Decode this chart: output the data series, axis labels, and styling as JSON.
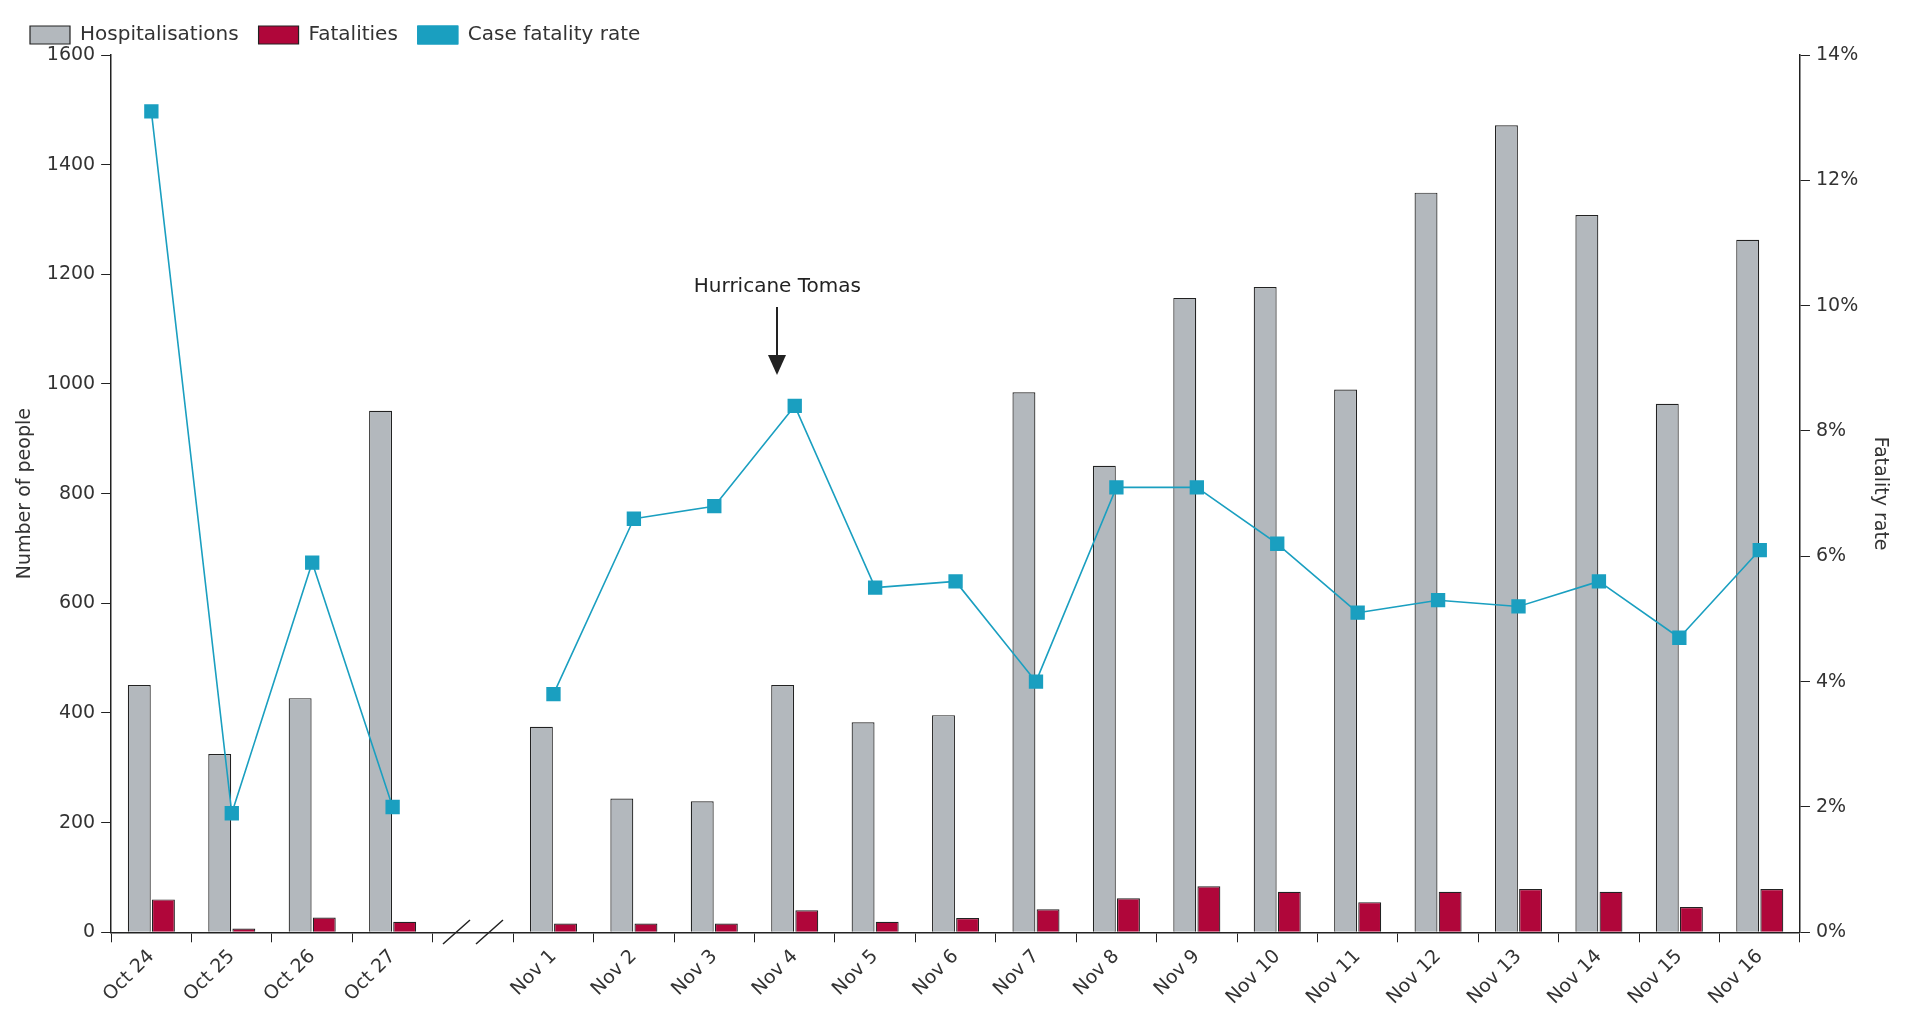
{
  "chart_data": {
    "type": "bar",
    "categories": [
      "Oct 24",
      "Oct 25",
      "Oct 26",
      "Oct 27",
      null,
      "Nov 1",
      "Nov 2",
      "Nov 3",
      "Nov 4",
      "Nov 5",
      "Nov 6",
      "Nov 7",
      "Nov 8",
      "Nov 9",
      "Nov 10",
      "Nov 11",
      "Nov 12",
      "Nov 13",
      "Nov 14",
      "Nov 15",
      "Nov 16"
    ],
    "series": [
      {
        "name": "Hospitalisations",
        "color": "#b3b8bd",
        "values": [
          451,
          325,
          427,
          951,
          null,
          375,
          244,
          239,
          451,
          383,
          396,
          985,
          851,
          1157,
          1177,
          990,
          1349,
          1472,
          1308,
          964,
          1263
        ]
      },
      {
        "name": "Fatalities",
        "color": "#b0063a",
        "values": [
          60,
          7,
          27,
          19,
          null,
          16,
          16,
          16,
          40,
          19,
          26,
          42,
          62,
          84,
          74,
          55,
          74,
          79,
          74,
          46,
          79
        ]
      },
      {
        "name": "Case fatality rate",
        "type": "line",
        "axis": "y2",
        "color": "#1a9fc0",
        "values": [
          13.1,
          1.9,
          5.9,
          2.0,
          null,
          3.8,
          6.6,
          6.8,
          8.4,
          5.5,
          5.6,
          4.0,
          7.1,
          7.1,
          6.2,
          5.1,
          5.3,
          5.2,
          5.6,
          4.7,
          6.1
        ]
      }
    ],
    "marker": "square",
    "ylabel": "Number of people",
    "y2label": "Fatality rate",
    "ylim": [
      0,
      1600
    ],
    "yticks": [
      0,
      200,
      400,
      600,
      800,
      1000,
      1200,
      1400,
      1600
    ],
    "y2lim": [
      0,
      14
    ],
    "y2ticks": [
      {
        "value": 0,
        "label": "0%"
      },
      {
        "value": 2,
        "label": "2%"
      },
      {
        "value": 4,
        "label": "4%"
      },
      {
        "value": 6,
        "label": "6%"
      },
      {
        "value": 8,
        "label": "8%"
      },
      {
        "value": 10,
        "label": "10%"
      },
      {
        "value": 12,
        "label": "12%"
      },
      {
        "value": 14,
        "label": "14%"
      }
    ],
    "legend": "top left",
    "annotations": [
      "Hurricane Tomas"
    ]
  }
}
